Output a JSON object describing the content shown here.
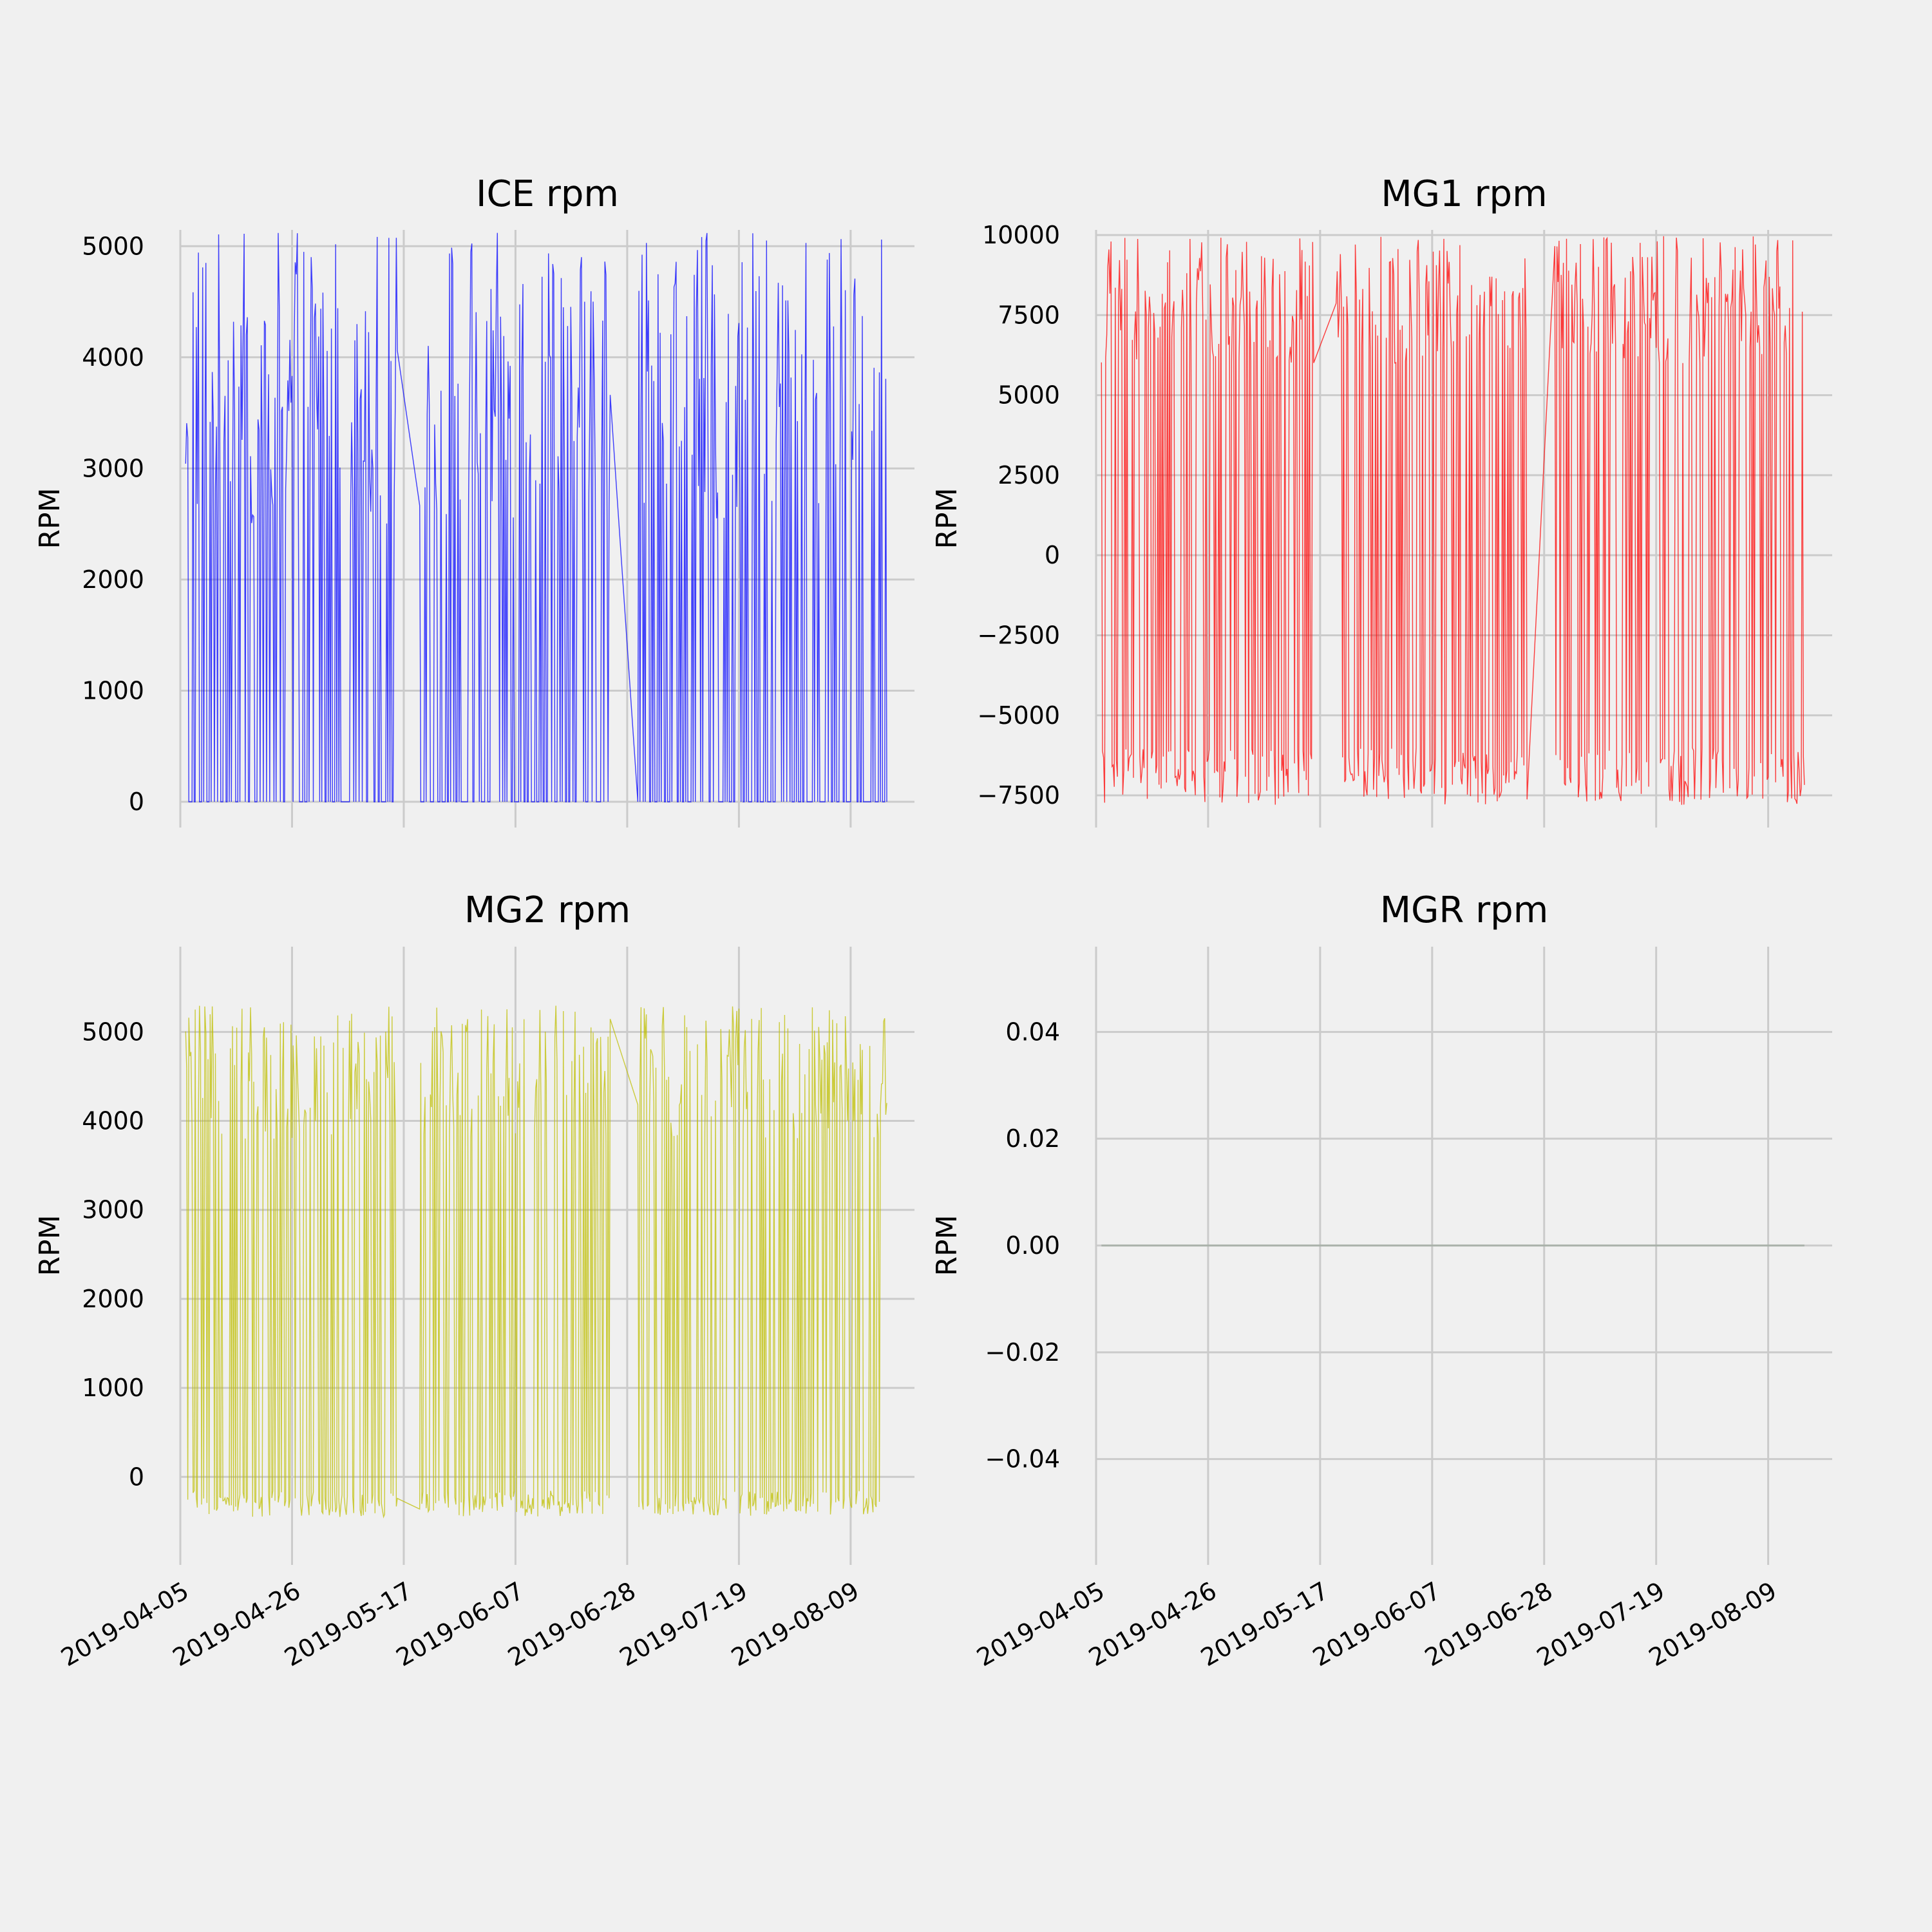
{
  "colors": {
    "background": "#f0f0f0",
    "grid": "#cbcbcb",
    "zero_line": "#a9b1a9"
  },
  "chart_data": [
    {
      "type": "line",
      "title": "ICE rpm",
      "ylabel": "RPM",
      "xlabel": "",
      "color": "#0000ff",
      "x_ticks": [
        "2019-04-05",
        "2019-04-26",
        "2019-05-17",
        "2019-06-07",
        "2019-06-28",
        "2019-07-19",
        "2019-08-09"
      ],
      "show_x_tick_labels": false,
      "xlim": [
        "2019-04-05",
        "2019-08-21"
      ],
      "y_ticks": [
        0,
        1000,
        2000,
        3000,
        4000,
        5000
      ],
      "y_tick_labels": [
        "0",
        "1000",
        "2000",
        "3000",
        "4000",
        "5000"
      ],
      "ylim": [
        0,
        5100
      ],
      "grid": true,
      "data_description": "dense daily trip bursts; each spike rises from 0 rpm to a per-trip peak",
      "data_range": {
        "min": 0,
        "max": 5120
      },
      "x_start": "2019-04-06",
      "x_end": "2019-08-16",
      "gaps": [
        [
          "2019-05-16",
          "2019-05-20"
        ],
        [
          "2019-06-25",
          "2019-06-30"
        ]
      ]
    },
    {
      "type": "line",
      "title": "MG1 rpm",
      "ylabel": "RPM",
      "xlabel": "",
      "color": "#ff0000",
      "x_ticks": [
        "2019-04-05",
        "2019-04-26",
        "2019-05-17",
        "2019-06-07",
        "2019-06-28",
        "2019-07-19",
        "2019-08-09"
      ],
      "show_x_tick_labels": false,
      "xlim": [
        "2019-04-05",
        "2019-08-21"
      ],
      "y_ticks": [
        -7500,
        -5000,
        -2500,
        0,
        2500,
        5000,
        7500,
        10000
      ],
      "y_tick_labels": [
        "−7500",
        "−5000",
        "−2500",
        "0",
        "2500",
        "5000",
        "7500",
        "10000"
      ],
      "ylim": [
        -7700,
        10000
      ],
      "grid": true,
      "data_description": "dense oscillation between about -7500 and 10000 rpm across all trips",
      "data_range": {
        "min": -7800,
        "max": 10000
      },
      "x_start": "2019-04-06",
      "x_end": "2019-08-16",
      "gaps": [
        [
          "2019-05-16",
          "2019-05-20"
        ],
        [
          "2019-06-25",
          "2019-06-30"
        ]
      ]
    },
    {
      "type": "line",
      "title": "MG2 rpm",
      "ylabel": "RPM",
      "xlabel": "",
      "color": "#bfbf00",
      "x_ticks": [
        "2019-04-05",
        "2019-04-26",
        "2019-05-17",
        "2019-06-07",
        "2019-06-28",
        "2019-07-19",
        "2019-08-09"
      ],
      "x_tick_labels": [
        "2019-04-05",
        "2019-04-26",
        "2019-05-17",
        "2019-06-07",
        "2019-06-28",
        "2019-07-19",
        "2019-08-09"
      ],
      "show_x_tick_labels": true,
      "xlim": [
        "2019-04-05",
        "2019-08-21"
      ],
      "y_ticks": [
        0,
        1000,
        2000,
        3000,
        4000,
        5000
      ],
      "y_tick_labels": [
        "0",
        "1000",
        "2000",
        "3000",
        "4000",
        "5000"
      ],
      "ylim": [
        -700,
        5900
      ],
      "grid": true,
      "data_description": "dense spikes from about -300 rpm up to 4000-5700 rpm",
      "data_range": {
        "min": -450,
        "max": 5700
      },
      "x_start": "2019-04-06",
      "x_end": "2019-08-16",
      "gaps": [
        [
          "2019-05-16",
          "2019-05-20"
        ],
        [
          "2019-06-25",
          "2019-06-30"
        ]
      ]
    },
    {
      "type": "line",
      "title": "MGR rpm",
      "ylabel": "RPM",
      "xlabel": "",
      "color": "#a9b1a9",
      "x_ticks": [
        "2019-04-05",
        "2019-04-26",
        "2019-05-17",
        "2019-06-07",
        "2019-06-28",
        "2019-07-19",
        "2019-08-09"
      ],
      "x_tick_labels": [
        "2019-04-05",
        "2019-04-26",
        "2019-05-17",
        "2019-06-07",
        "2019-06-28",
        "2019-07-19",
        "2019-08-09"
      ],
      "show_x_tick_labels": true,
      "xlim": [
        "2019-04-05",
        "2019-08-21"
      ],
      "y_ticks": [
        -0.04,
        -0.02,
        0.0,
        0.02,
        0.04
      ],
      "y_tick_labels": [
        "−0.04",
        "−0.02",
        "0.00",
        "0.02",
        "0.04"
      ],
      "ylim": [
        -0.055,
        0.055
      ],
      "grid": true,
      "data_description": "constant zero across the whole period",
      "data_range": {
        "min": 0,
        "max": 0
      },
      "x_start": "2019-04-06",
      "x_end": "2019-08-16",
      "gaps": []
    }
  ]
}
